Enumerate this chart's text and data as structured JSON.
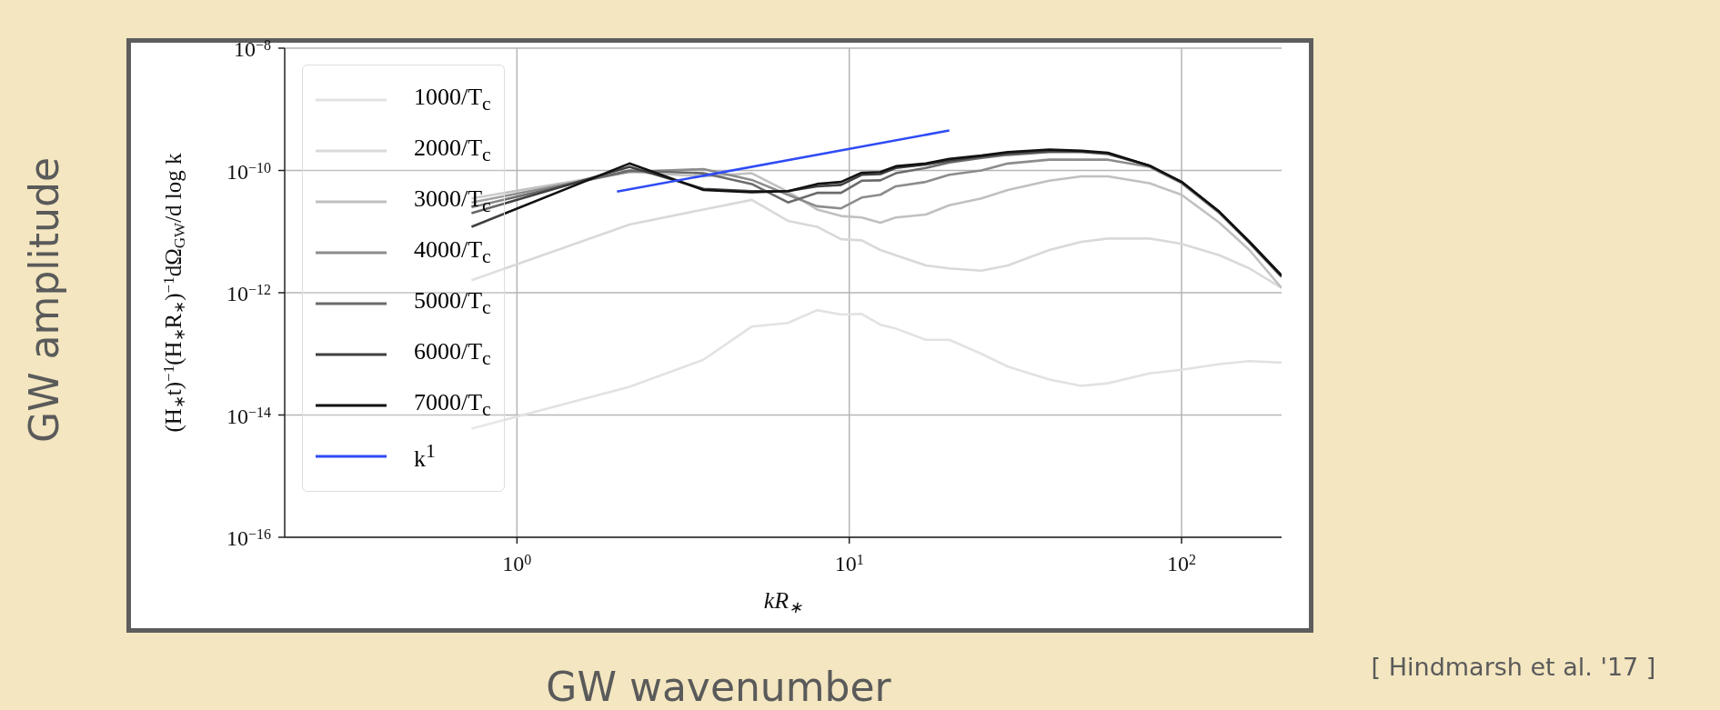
{
  "chart_data": {
    "type": "line",
    "xlabel": "kR$_{∗}$",
    "ylabel": "(H$_{∗}$t)$^{−1}$(H$_{∗}$R$_{∗}$)$^{−1}$dΩ$_{GW}$/d log k",
    "annotations": [
      "GW amplitude",
      "GW wavenumber",
      "[ Hindmarsh et al. '17 ]"
    ],
    "log": "xy",
    "grid": true,
    "legend": "top left",
    "xlim": [
      0.2,
      200
    ],
    "ylim": [
      1e-16,
      1e-08
    ],
    "xticks": [
      {
        "value": 1,
        "label": "10$^{0}$"
      },
      {
        "value": 10,
        "label": "10$^{1}$"
      },
      {
        "value": 100,
        "label": "10$^{2}$"
      }
    ],
    "yticks": [
      {
        "value": 1e-16,
        "label": "10$^{−16}$"
      },
      {
        "value": 1e-14,
        "label": "10$^{−14}$"
      },
      {
        "value": 1e-12,
        "label": "10$^{−12}$"
      },
      {
        "value": 1e-10,
        "label": "10$^{−10}$"
      },
      {
        "value": 1e-08,
        "label": "10$^{−8}$"
      }
    ],
    "x": [
      0.73,
      2.18,
      3.64,
      5.09,
      6.54,
      8.0,
      9.45,
      10.9,
      12.4,
      13.8,
      17,
      20,
      25,
      30,
      40,
      50,
      60,
      80,
      100,
      130,
      160,
      200
    ],
    "series": [
      {
        "name": "1000/T$_{c}$",
        "color": "#e2e2e2",
        "values": [
          6e-15,
          2.9e-14,
          8e-14,
          2.8e-13,
          3.2e-13,
          5.2e-13,
          4.4e-13,
          4.5e-13,
          3e-13,
          2.6e-13,
          1.7e-13,
          1.7e-13,
          1e-13,
          6.2e-14,
          3.8e-14,
          3e-14,
          3.3e-14,
          4.8e-14,
          5.5e-14,
          6.8e-14,
          7.6e-14,
          7.2e-14
        ]
      },
      {
        "name": "2000/T$_{c}$",
        "color": "#d9d9d9",
        "values": [
          1.6e-12,
          1.3e-11,
          2.3e-11,
          3.3e-11,
          1.5e-11,
          1.2e-11,
          7.5e-12,
          7.2e-12,
          5e-12,
          4.1e-12,
          2.8e-12,
          2.5e-12,
          2.3e-12,
          2.8e-12,
          5e-12,
          6.8e-12,
          7.7e-12,
          7.7e-12,
          6.3e-12,
          4.1e-12,
          2.5e-12,
          1.2e-12
        ]
      },
      {
        "name": "3000/T$_{c}$",
        "color": "#c0c0c0",
        "values": [
          3.5e-11,
          9.5e-11,
          8e-11,
          9e-11,
          4.5e-11,
          2.3e-11,
          1.8e-11,
          1.7e-11,
          1.4e-11,
          1.7e-11,
          1.9e-11,
          2.7e-11,
          3.5e-11,
          4.8e-11,
          6.8e-11,
          8e-11,
          8e-11,
          6.2e-11,
          4e-11,
          1.4e-11,
          5e-12,
          1.2e-12
        ]
      },
      {
        "name": "4000/T$_{c}$",
        "color": "#8c8c8c",
        "values": [
          3e-11,
          9.5e-11,
          1.05e-10,
          7e-11,
          4e-11,
          2.6e-11,
          2.4e-11,
          3.6e-11,
          4e-11,
          5.5e-11,
          6.5e-11,
          8.5e-11,
          1e-10,
          1.3e-10,
          1.5e-10,
          1.5e-10,
          1.5e-10,
          1.15e-10,
          6.2e-11,
          2e-11,
          6.5e-12,
          1.8e-12
        ]
      },
      {
        "name": "5000/T$_{c}$",
        "color": "#6b6b6b",
        "values": [
          2.5e-11,
          1e-10,
          9e-11,
          6e-11,
          3e-11,
          4.3e-11,
          4.3e-11,
          6.8e-11,
          6.9e-11,
          9e-11,
          1.1e-10,
          1.35e-10,
          1.6e-10,
          1.8e-10,
          2e-10,
          2e-10,
          1.85e-10,
          1.2e-10,
          6.5e-11,
          2.1e-11,
          6.8e-12,
          1.9e-12
        ]
      },
      {
        "name": "6000/T$_{c}$",
        "color": "#404040",
        "values": [
          2e-11,
          1.15e-10,
          5e-11,
          4.6e-11,
          4.6e-11,
          5.5e-11,
          5.8e-11,
          8.5e-11,
          8.7e-11,
          1.1e-10,
          1.25e-10,
          1.45e-10,
          1.7e-10,
          1.9e-10,
          2.1e-10,
          2.05e-10,
          1.9e-10,
          1.2e-10,
          6.5e-11,
          2.1e-11,
          6.8e-12,
          1.9e-12
        ]
      },
      {
        "name": "7000/T$_{c}$",
        "color": "#111111",
        "values": [
          1.2e-11,
          1.3e-10,
          4.8e-11,
          4.4e-11,
          4.6e-11,
          6e-11,
          6.5e-11,
          9.2e-11,
          9.4e-11,
          1.17e-10,
          1.3e-10,
          1.55e-10,
          1.75e-10,
          2e-10,
          2.2e-10,
          2.1e-10,
          1.95e-10,
          1.2e-10,
          6.5e-11,
          2.1e-11,
          6.8e-12,
          1.9e-12
        ]
      },
      {
        "name": "k$^{1}$",
        "color": "#2f4bf5",
        "x": [
          2,
          20
        ],
        "values": [
          4.5e-11,
          4.5e-10
        ]
      }
    ]
  }
}
